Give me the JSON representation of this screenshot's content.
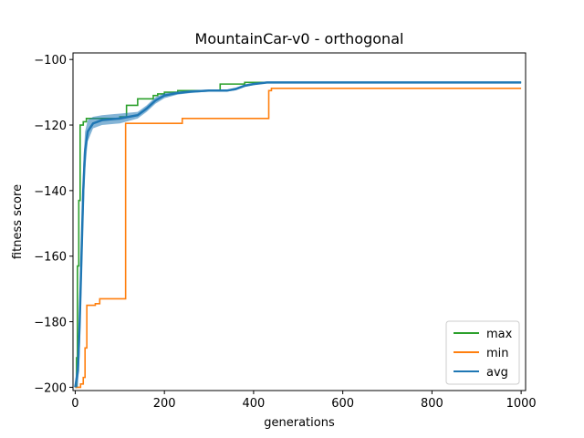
{
  "chart_data": {
    "type": "line",
    "title": "MountainCar-v0 - orthogonal",
    "xlabel": "generations",
    "ylabel": "fitness score",
    "xlim": [
      -5,
      1010
    ],
    "ylim": [
      -201,
      -98
    ],
    "xticks": [
      0,
      200,
      400,
      600,
      800,
      1000
    ],
    "xtick_labels": [
      "0",
      "200",
      "400",
      "600",
      "800",
      "1000"
    ],
    "yticks": [
      -100,
      -120,
      -140,
      -160,
      -180,
      -200
    ],
    "ytick_labels": [
      "−100",
      "−120",
      "−140",
      "−160",
      "−180",
      "−200"
    ],
    "grid": false,
    "legend_position": "lower-right",
    "series": [
      {
        "name": "max",
        "color": "#2ca02c",
        "step": true,
        "points": [
          [
            0,
            -200
          ],
          [
            3,
            -191
          ],
          [
            5,
            -163
          ],
          [
            8,
            -143
          ],
          [
            11,
            -120
          ],
          [
            18,
            -119
          ],
          [
            25,
            -118
          ],
          [
            60,
            -118
          ],
          [
            100,
            -117.5
          ],
          [
            115,
            -114
          ],
          [
            140,
            -112
          ],
          [
            175,
            -111
          ],
          [
            185,
            -110.5
          ],
          [
            200,
            -110
          ],
          [
            230,
            -109.5
          ],
          [
            260,
            -109.5
          ],
          [
            320,
            -109.5
          ],
          [
            325,
            -107.5
          ],
          [
            380,
            -107
          ],
          [
            1000,
            -107
          ]
        ]
      },
      {
        "name": "min",
        "color": "#ff7f0e",
        "step": true,
        "points": [
          [
            0,
            -200
          ],
          [
            12,
            -199
          ],
          [
            18,
            -197
          ],
          [
            22,
            -188
          ],
          [
            26,
            -175
          ],
          [
            40,
            -175
          ],
          [
            45,
            -174.5
          ],
          [
            55,
            -173
          ],
          [
            112,
            -173
          ],
          [
            113,
            -119.5
          ],
          [
            235,
            -119.5
          ],
          [
            240,
            -118
          ],
          [
            432,
            -118
          ],
          [
            434,
            -109.5
          ],
          [
            440,
            -108.8
          ],
          [
            1000,
            -108.8
          ]
        ]
      },
      {
        "name": "avg",
        "color": "#1f77b4",
        "band_color": "#1f77b4",
        "points": [
          [
            0,
            -200
          ],
          [
            6,
            -195
          ],
          [
            10,
            -180
          ],
          [
            14,
            -160
          ],
          [
            18,
            -140
          ],
          [
            22,
            -128
          ],
          [
            28,
            -122
          ],
          [
            40,
            -119.5
          ],
          [
            60,
            -118.5
          ],
          [
            100,
            -118
          ],
          [
            140,
            -117
          ],
          [
            160,
            -115
          ],
          [
            180,
            -112.5
          ],
          [
            200,
            -111
          ],
          [
            230,
            -110.2
          ],
          [
            260,
            -109.8
          ],
          [
            300,
            -109.5
          ],
          [
            340,
            -109.5
          ],
          [
            360,
            -109
          ],
          [
            380,
            -108
          ],
          [
            400,
            -107.5
          ],
          [
            430,
            -107
          ],
          [
            1000,
            -107
          ]
        ],
        "band_upper": [
          [
            0,
            -198
          ],
          [
            6,
            -190
          ],
          [
            10,
            -175
          ],
          [
            14,
            -152
          ],
          [
            18,
            -132
          ],
          [
            22,
            -122
          ],
          [
            28,
            -118.5
          ],
          [
            40,
            -117.5
          ],
          [
            60,
            -117
          ],
          [
            100,
            -116.5
          ],
          [
            140,
            -116
          ],
          [
            160,
            -114
          ],
          [
            180,
            -111.5
          ],
          [
            200,
            -110.3
          ],
          [
            230,
            -109.8
          ],
          [
            260,
            -109.4
          ],
          [
            300,
            -109.2
          ],
          [
            340,
            -109.2
          ],
          [
            360,
            -108.6
          ],
          [
            380,
            -107.6
          ],
          [
            400,
            -107.2
          ],
          [
            430,
            -106.9
          ],
          [
            1000,
            -106.9
          ]
        ],
        "band_lower": [
          [
            0,
            -200
          ],
          [
            6,
            -200
          ],
          [
            10,
            -190
          ],
          [
            14,
            -170
          ],
          [
            18,
            -150
          ],
          [
            22,
            -134
          ],
          [
            28,
            -125
          ],
          [
            40,
            -121
          ],
          [
            60,
            -120
          ],
          [
            100,
            -119.5
          ],
          [
            140,
            -118
          ],
          [
            160,
            -116
          ],
          [
            180,
            -113.5
          ],
          [
            200,
            -111.8
          ],
          [
            230,
            -110.7
          ],
          [
            260,
            -110.2
          ],
          [
            300,
            -109.8
          ],
          [
            340,
            -109.8
          ],
          [
            360,
            -109.4
          ],
          [
            380,
            -108.4
          ],
          [
            400,
            -107.8
          ],
          [
            430,
            -107.1
          ],
          [
            1000,
            -107.1
          ]
        ]
      }
    ]
  }
}
